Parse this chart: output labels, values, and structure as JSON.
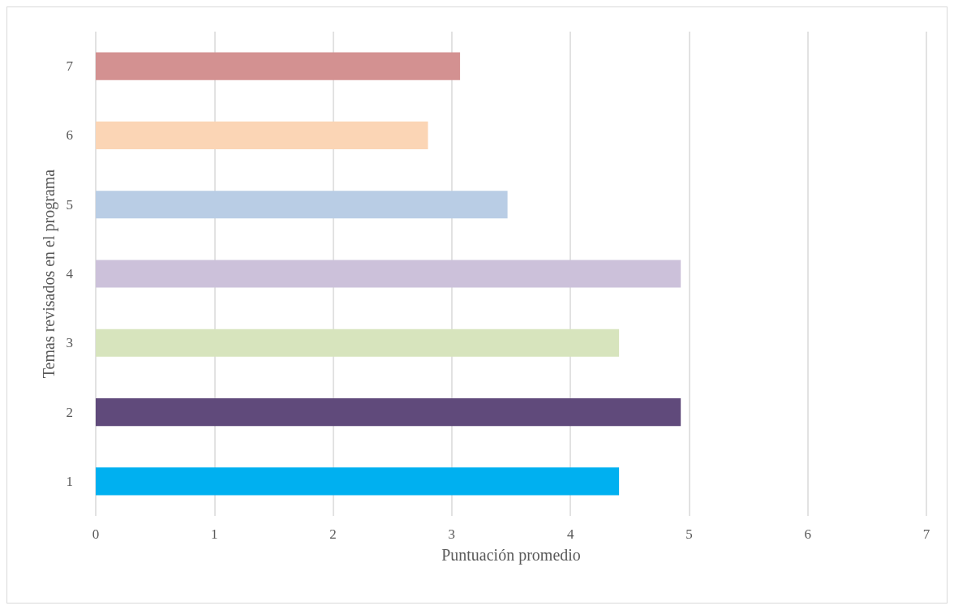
{
  "chart_data": {
    "type": "bar",
    "orientation": "horizontal",
    "xlabel": "Puntuación promedio",
    "ylabel": "Temas revisados en el programa",
    "categories": [
      "7",
      "6",
      "5",
      "4",
      "3",
      "2",
      "1"
    ],
    "values": [
      3.07,
      2.8,
      3.47,
      4.93,
      4.41,
      4.93,
      4.41
    ],
    "colors": [
      "#d39191",
      "#fbd5b5",
      "#b9cde5",
      "#ccc1da",
      "#d7e4bd",
      "#604a7b",
      "#00b0f0"
    ],
    "xlim": [
      0,
      7
    ],
    "xticks": [
      0,
      1,
      2,
      3,
      4,
      5,
      6,
      7
    ],
    "grid": "x"
  }
}
